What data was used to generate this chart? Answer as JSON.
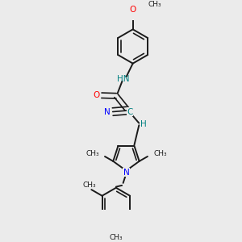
{
  "background_color": "#ebebeb",
  "bond_color": "#1a1a1a",
  "nitrogen_color": "#0000ff",
  "oxygen_color": "#ff0000",
  "teal_color": "#008080",
  "figsize": [
    3.0,
    3.0
  ],
  "dpi": 100,
  "xlim": [
    -2.5,
    2.5
  ],
  "ylim": [
    -4.2,
    3.8
  ]
}
